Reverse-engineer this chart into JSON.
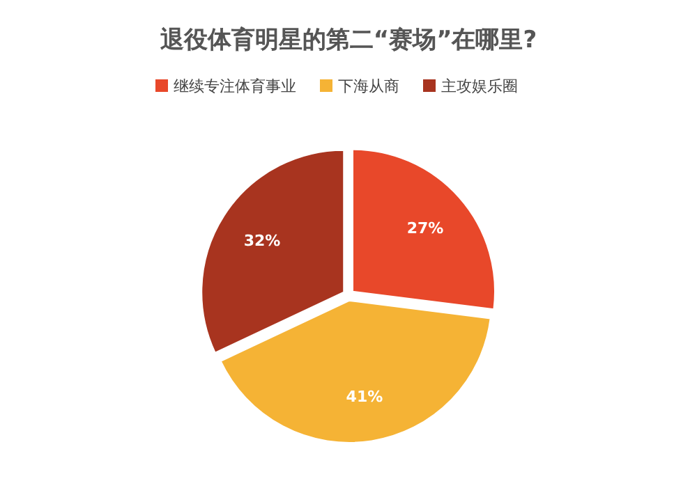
{
  "chart_data": {
    "type": "pie",
    "title": "退役体育明星的第二“赛场”在哪里?",
    "legend": "top",
    "categories": [
      "继续专注体育事业",
      "下海从商",
      "主攻娱乐圈"
    ],
    "values": [
      27,
      41,
      32
    ],
    "colors": [
      "#e8482a",
      "#f5b335",
      "#a8341f"
    ],
    "value_labels": [
      "27%",
      "41%",
      "32%"
    ]
  }
}
